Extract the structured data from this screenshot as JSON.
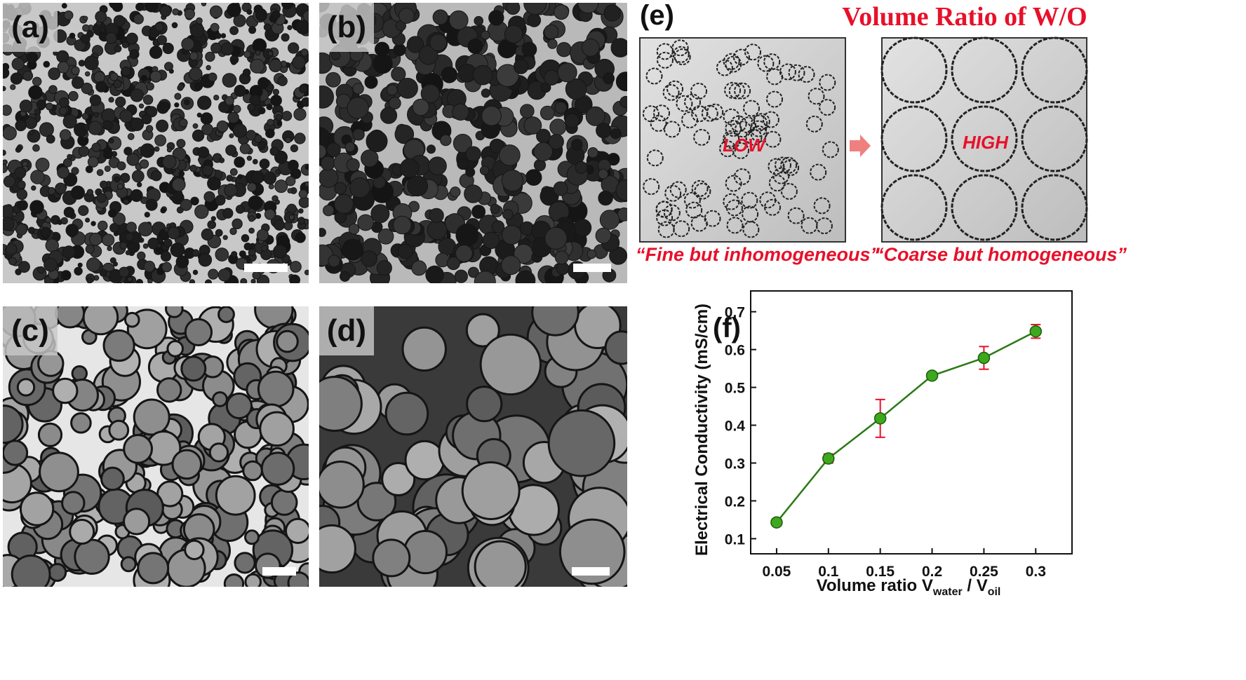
{
  "panels": {
    "a": {
      "label": "(a)"
    },
    "b": {
      "label": "(b)"
    },
    "c": {
      "label": "(c)"
    },
    "d": {
      "label": "(d)"
    }
  },
  "schematic": {
    "letter": "(e)",
    "title": "Volume Ratio of W/O",
    "low_label": "LOW",
    "high_label": "HIGH",
    "low_caption": "“Fine but inhomogeneous”",
    "high_caption": "“Coarse but homogeneous”",
    "colors": {
      "accent": "#e8102a",
      "box_fill": "#cfcfcf",
      "arrow": "#f08080"
    }
  },
  "chart_letter": "(f)",
  "chart_data": {
    "type": "line",
    "xlabel_main": "Volume ratio V",
    "xlabel_sub1": "water",
    "xlabel_mid": " / V",
    "xlabel_sub2": "oil",
    "ylabel": "Electrical Conductivity (mS/cm)",
    "x": [
      0.05,
      0.1,
      0.15,
      0.2,
      0.25,
      0.3
    ],
    "x_tick_labels": [
      "0.05",
      "0.1",
      "0.15",
      "0.2",
      "0.25",
      "0.3"
    ],
    "y_ticks": [
      0.1,
      0.2,
      0.3,
      0.4,
      0.5,
      0.6,
      0.7
    ],
    "y_tick_labels": [
      "0.1",
      "0.2",
      "0.3",
      "0.4",
      "0.5",
      "0.6",
      "0.7"
    ],
    "xlim": [
      0.025,
      0.335
    ],
    "ylim": [
      0.06,
      0.755
    ],
    "series": [
      {
        "values": [
          0.143,
          0.312,
          0.418,
          0.531,
          0.578,
          0.648
        ],
        "errors": [
          0.007,
          0.012,
          0.05,
          0.008,
          0.03,
          0.018
        ]
      }
    ],
    "grid": false,
    "colors": {
      "line": "#2a7a14",
      "marker": "#3da81e",
      "errorbar": "#e8102a"
    }
  }
}
